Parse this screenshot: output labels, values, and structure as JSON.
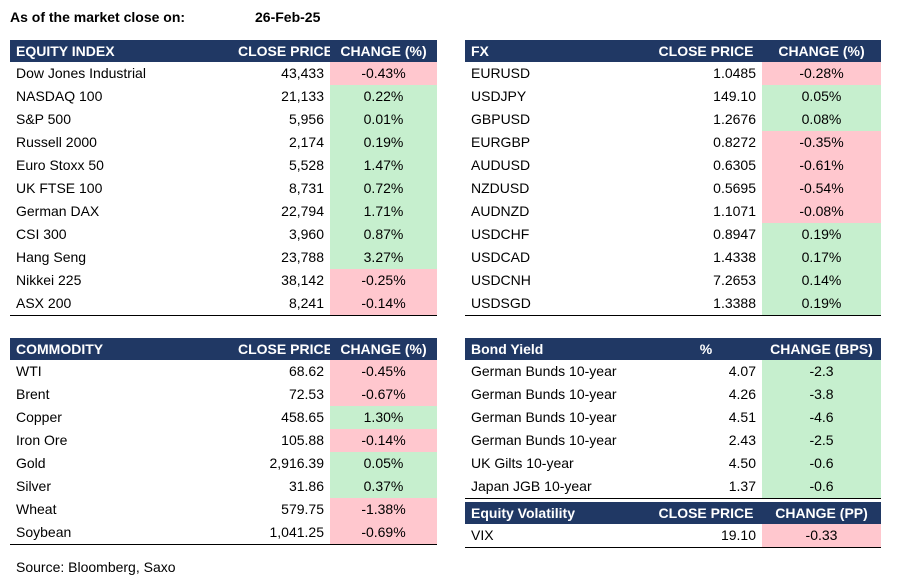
{
  "header": {
    "label": "As of the market close on:",
    "date": "26-Feb-25"
  },
  "tables": [
    {
      "columns": [
        "EQUITY INDEX",
        "CLOSE PRICE",
        "CHANGE (%)"
      ],
      "rows": [
        [
          "Dow Jones Industrial",
          "43,433",
          "-0.43%"
        ],
        [
          "NASDAQ 100",
          "21,133",
          "0.22%"
        ],
        [
          "S&P 500",
          "5,956",
          "0.01%"
        ],
        [
          "Russell 2000",
          "2,174",
          "0.19%"
        ],
        [
          "Euro Stoxx 50",
          "5,528",
          "1.47%"
        ],
        [
          "UK FTSE 100",
          "8,731",
          "0.72%"
        ],
        [
          "German DAX",
          "22,794",
          "1.71%"
        ],
        [
          "CSI 300",
          "3,960",
          "0.87%"
        ],
        [
          "Hang Seng",
          "23,788",
          "3.27%"
        ],
        [
          "Nikkei 225",
          "38,142",
          "-0.25%"
        ],
        [
          "ASX 200",
          "8,241",
          "-0.14%"
        ]
      ],
      "change_fill": [
        "#ffc7ce",
        "#c6efce",
        "#c6efce",
        "#c6efce",
        "#c6efce",
        "#c6efce",
        "#c6efce",
        "#c6efce",
        "#c6efce",
        "#ffc7ce",
        "#ffc7ce"
      ]
    },
    {
      "columns": [
        "FX",
        "CLOSE PRICE",
        "CHANGE (%)"
      ],
      "rows": [
        [
          "EURUSD",
          "1.0485",
          "-0.28%"
        ],
        [
          "USDJPY",
          "149.10",
          "0.05%"
        ],
        [
          "GBPUSD",
          "1.2676",
          "0.08%"
        ],
        [
          "EURGBP",
          "0.8272",
          "-0.35%"
        ],
        [
          "AUDUSD",
          "0.6305",
          "-0.61%"
        ],
        [
          "NZDUSD",
          "0.5695",
          "-0.54%"
        ],
        [
          "AUDNZD",
          "1.1071",
          "-0.08%"
        ],
        [
          "USDCHF",
          "0.8947",
          "0.19%"
        ],
        [
          "USDCAD",
          "1.4338",
          "0.17%"
        ],
        [
          "USDCNH",
          "7.2653",
          "0.14%"
        ],
        [
          "USDSGD",
          "1.3388",
          "0.19%"
        ]
      ],
      "change_fill": [
        "#ffc7ce",
        "#c6efce",
        "#c6efce",
        "#ffc7ce",
        "#ffc7ce",
        "#ffc7ce",
        "#ffc7ce",
        "#c6efce",
        "#c6efce",
        "#c6efce",
        "#c6efce"
      ]
    },
    {
      "columns": [
        "COMMODITY",
        "CLOSE PRICE",
        "CHANGE (%)"
      ],
      "rows": [
        [
          "WTI",
          "68.62",
          "-0.45%"
        ],
        [
          "Brent",
          "72.53",
          "-0.67%"
        ],
        [
          "Copper",
          "458.65",
          "1.30%"
        ],
        [
          "Iron Ore",
          "105.88",
          "-0.14%"
        ],
        [
          "Gold",
          "2,916.39",
          "0.05%"
        ],
        [
          "Silver",
          "31.86",
          "0.37%"
        ],
        [
          "Wheat",
          "579.75",
          "-1.38%"
        ],
        [
          "Soybean",
          "1,041.25",
          "-0.69%"
        ]
      ],
      "change_fill": [
        "#ffc7ce",
        "#ffc7ce",
        "#c6efce",
        "#ffc7ce",
        "#c6efce",
        "#c6efce",
        "#ffc7ce",
        "#ffc7ce"
      ]
    },
    {
      "columns": [
        "Bond Yield",
        "%",
        "CHANGE (BPS)"
      ],
      "rows": [
        [
          "German Bunds 10-year",
          "4.07",
          "-2.3"
        ],
        [
          "German Bunds 10-year",
          "4.26",
          "-3.8"
        ],
        [
          "German Bunds 10-year",
          "4.51",
          "-4.6"
        ],
        [
          "German Bunds 10-year",
          "2.43",
          "-2.5"
        ],
        [
          "UK Gilts 10-year",
          "4.50",
          "-0.6"
        ],
        [
          "Japan JGB 10-year",
          "1.37",
          "-0.6"
        ]
      ],
      "change_fill": [
        "#c6efce",
        "#c6efce",
        "#c6efce",
        "#c6efce",
        "#c6efce",
        "#c6efce"
      ]
    },
    {
      "columns": [
        "Equity Volatility",
        "CLOSE PRICE",
        "CHANGE (PP)"
      ],
      "rows": [
        [
          "VIX",
          "19.10",
          "-0.33"
        ]
      ],
      "change_fill": [
        "#ffc7ce"
      ]
    }
  ],
  "source": "Source: Bloomberg, Saxo"
}
